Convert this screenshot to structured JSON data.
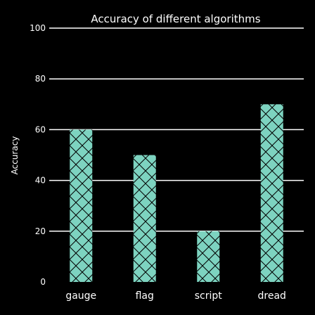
{
  "chart_data": {
    "type": "bar",
    "title": "Accuracy of different algorithms",
    "xlabel": "",
    "ylabel": "Accuracy",
    "categories": [
      "gauge",
      "flag",
      "script",
      "dread"
    ],
    "values": [
      60,
      50,
      20,
      70
    ],
    "ylim": [
      0,
      100
    ],
    "yticks": [
      0,
      20,
      40,
      60,
      80,
      100
    ],
    "grid": "horizontal",
    "bar_color": "#7dd3c0",
    "hatch_color": "#000000",
    "background": "#000000",
    "text_color": "#ffffff",
    "grid_color": "#ffffff"
  }
}
